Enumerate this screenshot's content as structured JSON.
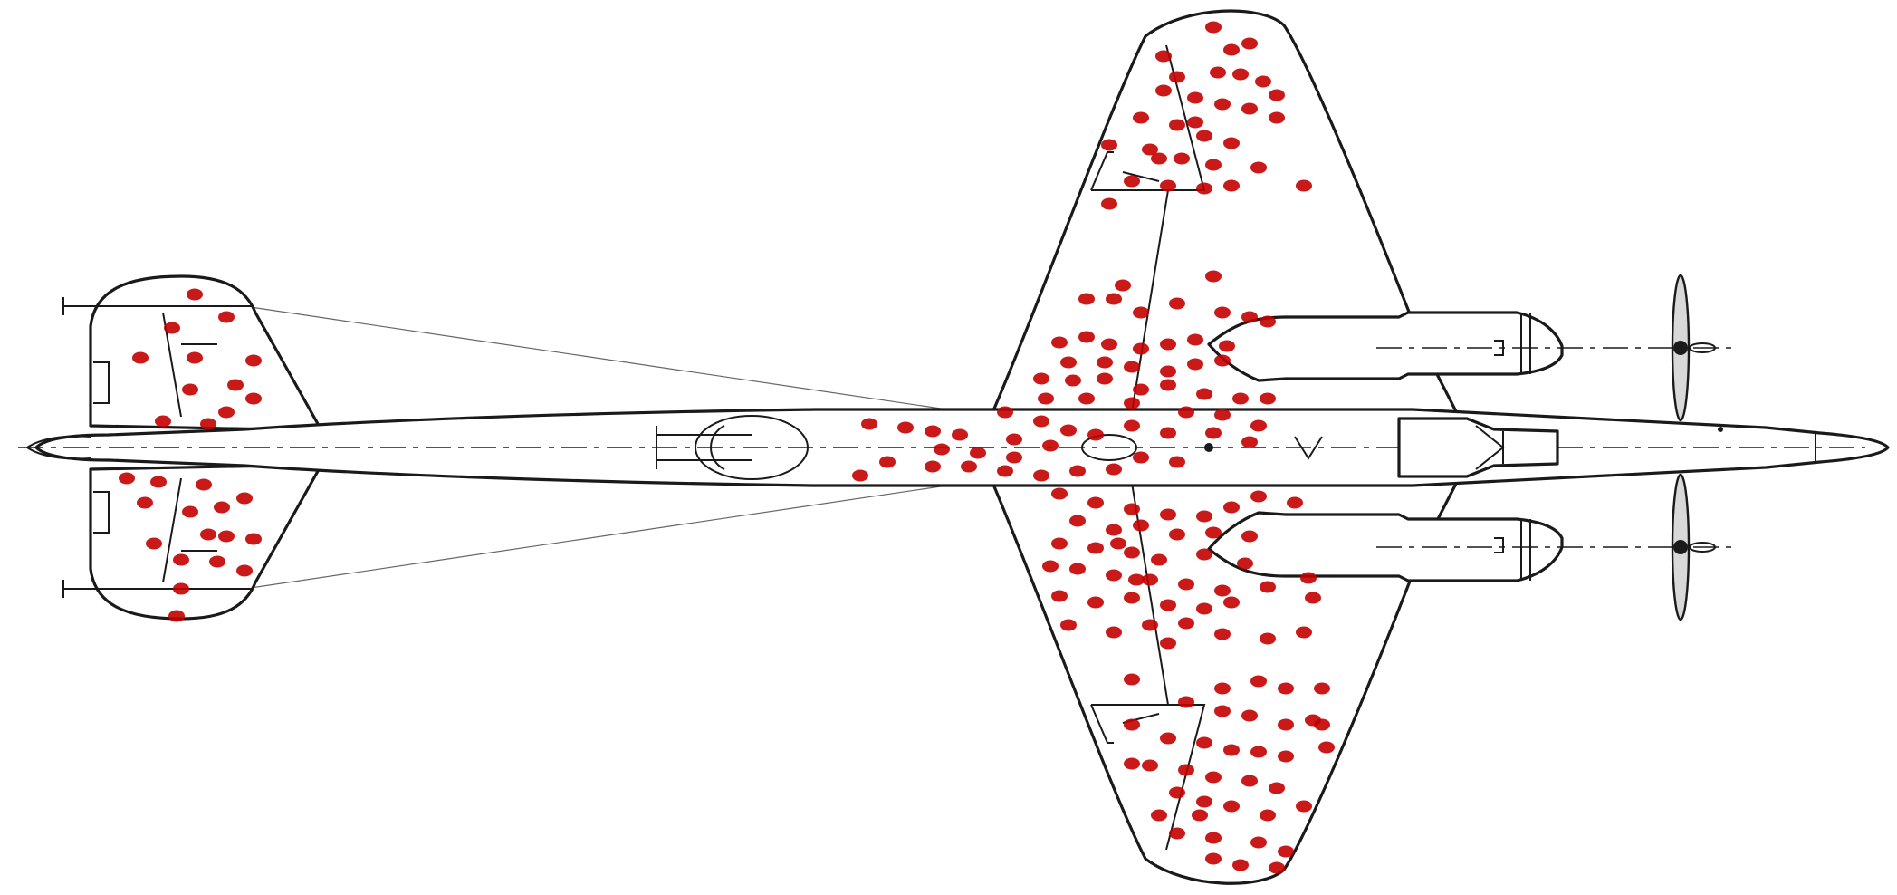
{
  "colors": {
    "background": "#ffffff",
    "outline": "#1a1a1a",
    "bullet_hole": "#c40000"
  }
}
